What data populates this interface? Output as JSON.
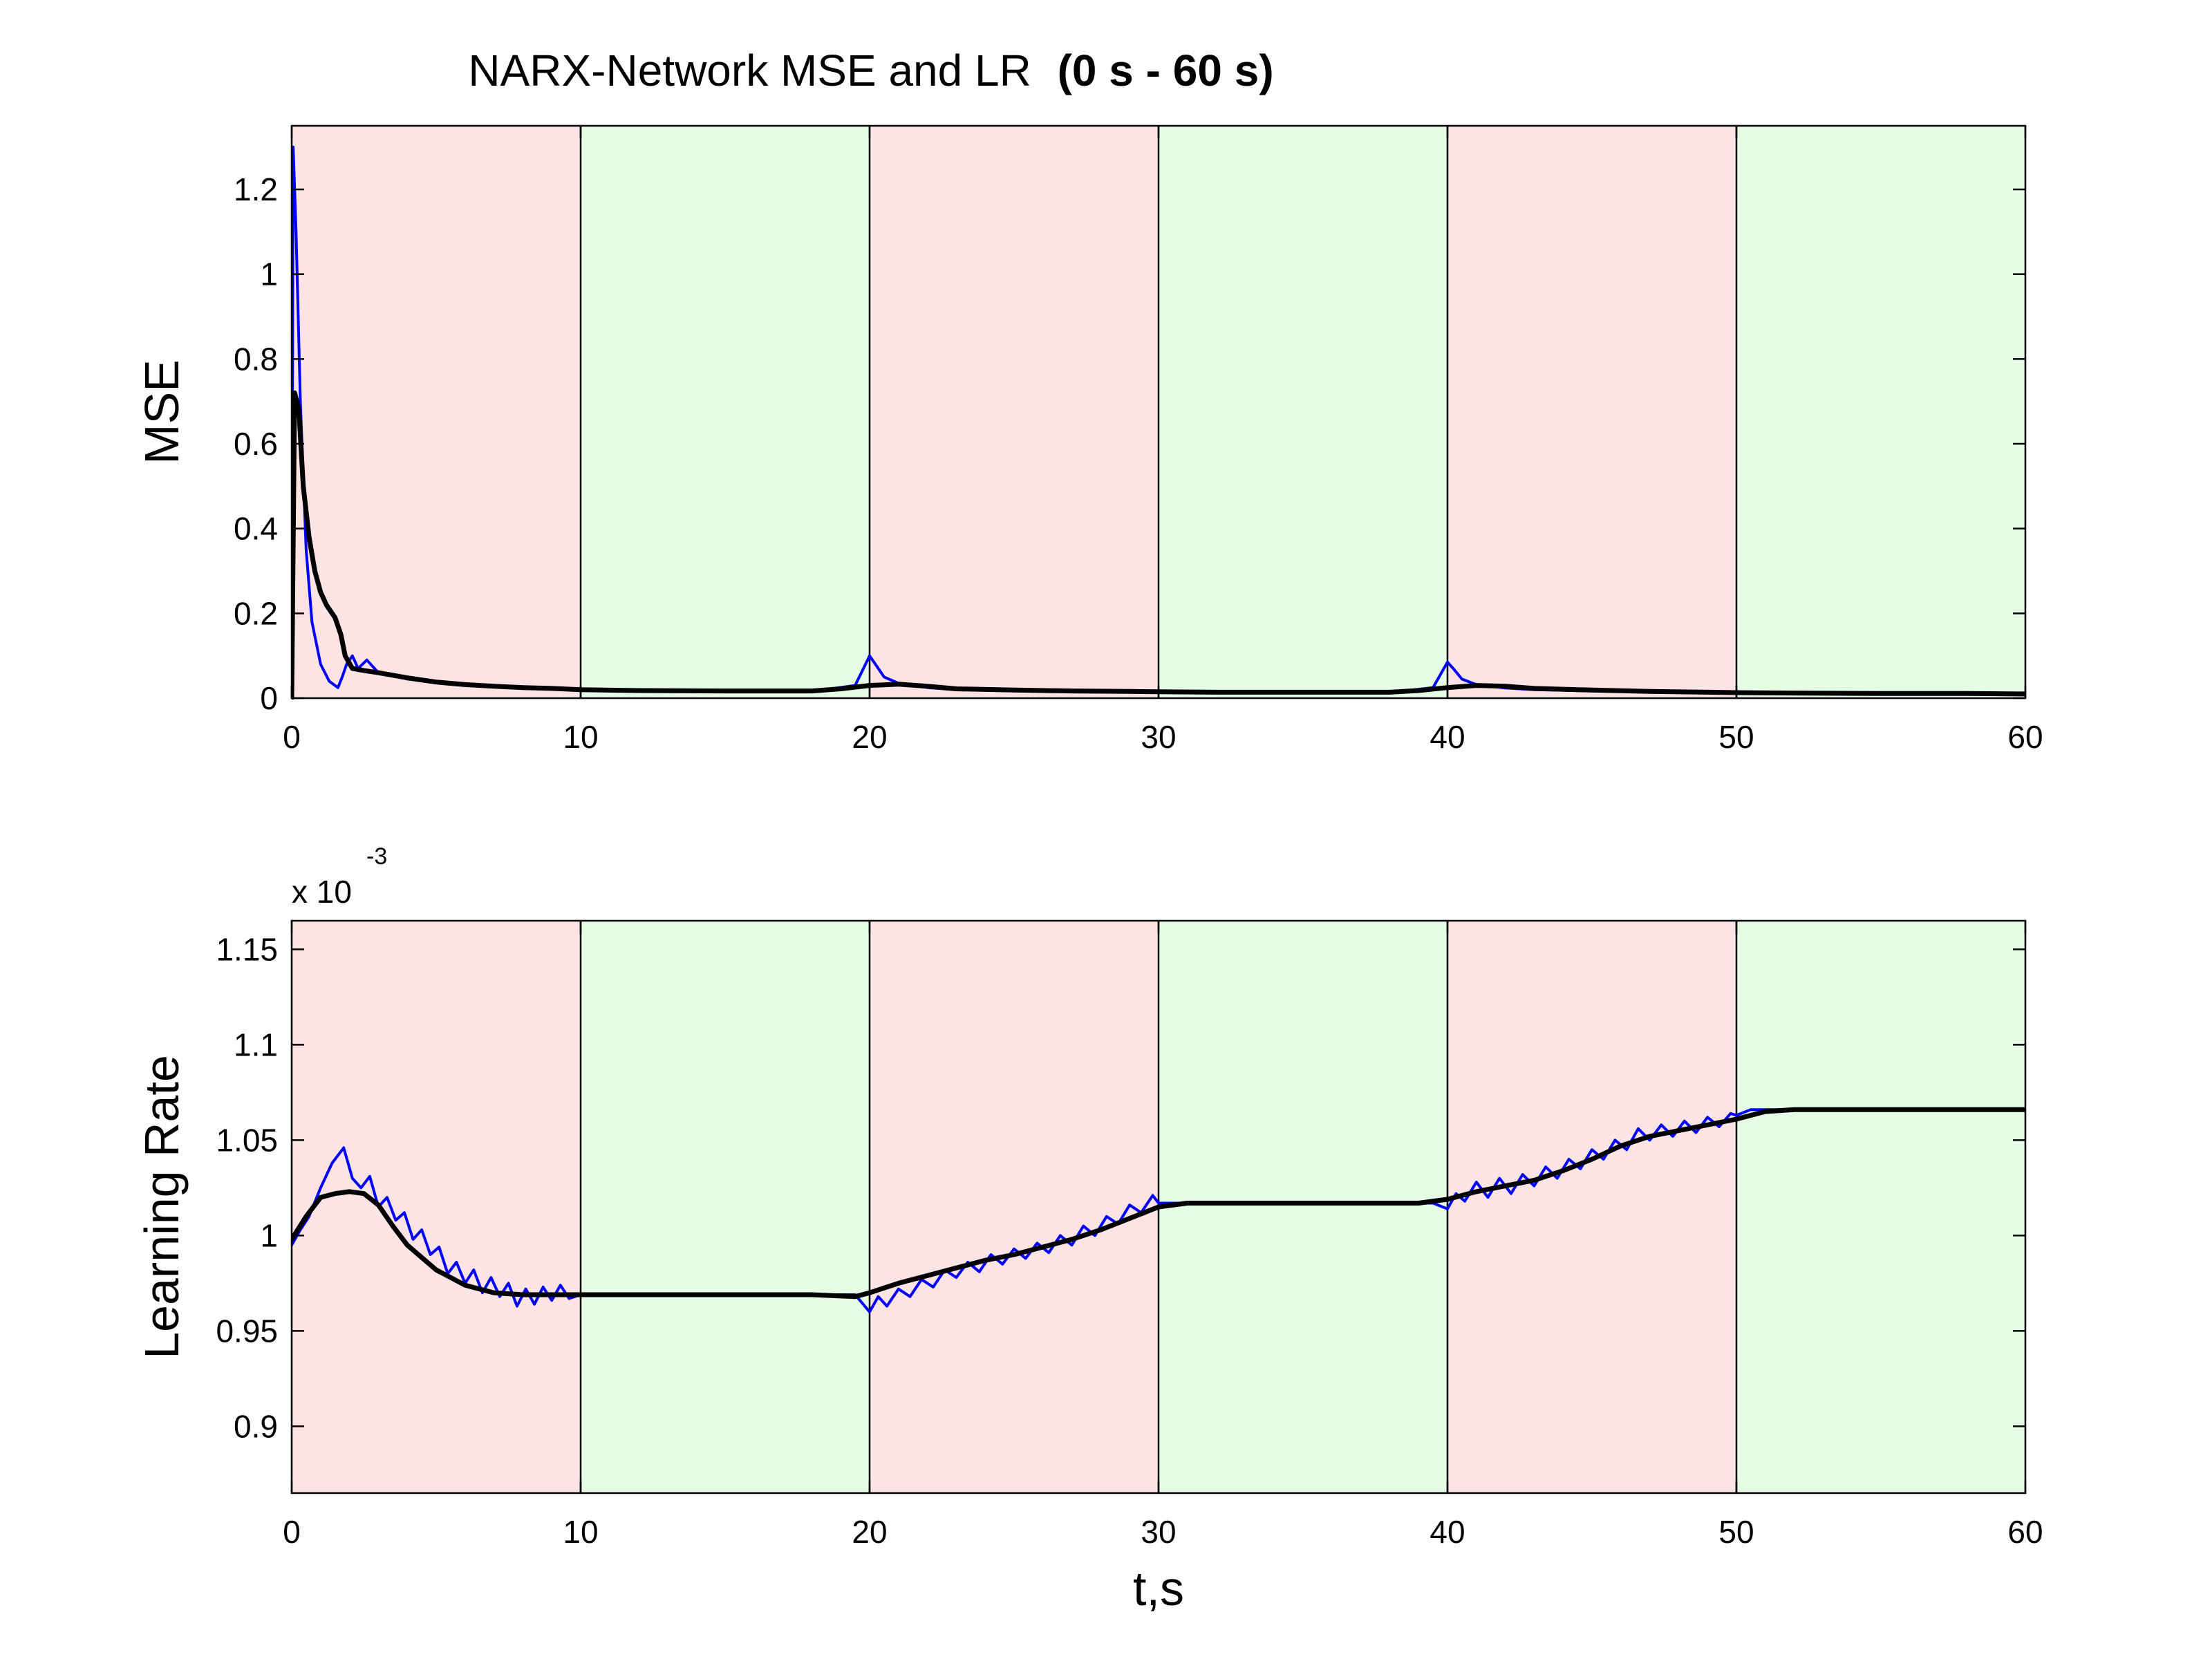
{
  "figure": {
    "title": "NARX-Network MSE and LR",
    "title_bold_suffix": "(0 s - 60 s)"
  },
  "colors": {
    "background": "#ffffff",
    "stop_band": "#fde4e4",
    "run_band": "#e4fde4",
    "raw_series": "#0000ff",
    "smoothed_series": "#000000",
    "axis": "#000000"
  },
  "chart_data": [
    {
      "type": "line",
      "ylabel": "MSE",
      "xlabel": "",
      "xlim": [
        0,
        60
      ],
      "ylim": [
        0,
        1.35
      ],
      "x_ticks": [
        0,
        10,
        20,
        30,
        40,
        50,
        60
      ],
      "y_ticks": [
        0,
        0.2,
        0.4,
        0.6,
        0.8,
        1,
        1.2
      ],
      "y_tick_labels": [
        "0",
        "0.2",
        "0.4",
        "0.6",
        "0.8",
        "1",
        "1.2"
      ],
      "exponent_label": "",
      "bands": [
        {
          "x0": 0,
          "x1": 10,
          "kind": "stop"
        },
        {
          "x0": 10,
          "x1": 20,
          "kind": "run"
        },
        {
          "x0": 20,
          "x1": 30,
          "kind": "stop"
        },
        {
          "x0": 30,
          "x1": 40,
          "kind": "run"
        },
        {
          "x0": 40,
          "x1": 50,
          "kind": "stop"
        },
        {
          "x0": 50,
          "x1": 60,
          "kind": "run"
        }
      ],
      "series": [
        {
          "role": "raw",
          "x": [
            0,
            0.05,
            0.15,
            0.3,
            0.5,
            0.7,
            1.0,
            1.3,
            1.6,
            1.75,
            1.9,
            2.1,
            2.3,
            2.6,
            3.0,
            3.5,
            4,
            5,
            6,
            7,
            8,
            9,
            10,
            12,
            15,
            18,
            19.5,
            20.0,
            20.2,
            20.5,
            21,
            22,
            23,
            25,
            27,
            29,
            30,
            32,
            35,
            38,
            39.5,
            40.0,
            40.2,
            40.5,
            41,
            42,
            43,
            45,
            47,
            49,
            50,
            52,
            55,
            58,
            60
          ],
          "y": [
            0,
            1.3,
            1.1,
            0.7,
            0.35,
            0.18,
            0.08,
            0.04,
            0.025,
            0.05,
            0.08,
            0.1,
            0.07,
            0.09,
            0.06,
            0.055,
            0.045,
            0.04,
            0.032,
            0.028,
            0.025,
            0.023,
            0.02,
            0.018,
            0.017,
            0.016,
            0.03,
            0.1,
            0.08,
            0.05,
            0.035,
            0.025,
            0.02,
            0.018,
            0.016,
            0.015,
            0.014,
            0.013,
            0.013,
            0.013,
            0.025,
            0.085,
            0.07,
            0.045,
            0.032,
            0.024,
            0.02,
            0.017,
            0.015,
            0.013,
            0.012,
            0.011,
            0.011,
            0.01,
            0.01
          ]
        },
        {
          "role": "smoothed",
          "x": [
            0,
            0.1,
            0.25,
            0.4,
            0.6,
            0.8,
            1.0,
            1.2,
            1.5,
            1.7,
            1.85,
            2.1,
            2.5,
            3.0,
            4,
            5,
            6,
            7,
            8,
            9,
            10,
            12,
            15,
            18,
            19,
            20,
            21,
            22,
            23,
            25,
            27,
            29,
            30,
            32,
            35,
            38,
            39,
            40,
            41,
            42,
            43,
            45,
            47,
            49,
            50,
            52,
            55,
            58,
            60
          ],
          "y": [
            0,
            0.72,
            0.68,
            0.5,
            0.38,
            0.3,
            0.25,
            0.22,
            0.19,
            0.15,
            0.1,
            0.07,
            0.065,
            0.06,
            0.048,
            0.038,
            0.032,
            0.028,
            0.025,
            0.023,
            0.02,
            0.018,
            0.017,
            0.017,
            0.022,
            0.03,
            0.033,
            0.028,
            0.022,
            0.019,
            0.017,
            0.016,
            0.015,
            0.014,
            0.014,
            0.014,
            0.018,
            0.025,
            0.03,
            0.028,
            0.023,
            0.019,
            0.016,
            0.014,
            0.013,
            0.012,
            0.011,
            0.011,
            0.01
          ]
        }
      ]
    },
    {
      "type": "line",
      "ylabel": "Learning Rate",
      "xlabel": "t,s",
      "xlim": [
        0,
        60
      ],
      "ylim": [
        0.865,
        1.165
      ],
      "x_ticks": [
        0,
        10,
        20,
        30,
        40,
        50,
        60
      ],
      "y_ticks": [
        0.9,
        0.95,
        1,
        1.05,
        1.1,
        1.15
      ],
      "y_tick_labels": [
        "0.9",
        "0.95",
        "1",
        "1.05",
        "1.1",
        "1.15"
      ],
      "exponent_label": "x 10",
      "exponent_power": "-3",
      "bands": [
        {
          "x0": 0,
          "x1": 10,
          "kind": "stop"
        },
        {
          "x0": 10,
          "x1": 20,
          "kind": "run"
        },
        {
          "x0": 20,
          "x1": 30,
          "kind": "stop"
        },
        {
          "x0": 30,
          "x1": 40,
          "kind": "run"
        },
        {
          "x0": 40,
          "x1": 50,
          "kind": "stop"
        },
        {
          "x0": 50,
          "x1": 60,
          "kind": "run"
        }
      ],
      "series": [
        {
          "role": "raw",
          "x": [
            0,
            0.3,
            0.6,
            1.0,
            1.4,
            1.8,
            2.1,
            2.4,
            2.7,
            3.0,
            3.3,
            3.6,
            3.9,
            4.2,
            4.5,
            4.8,
            5.1,
            5.4,
            5.7,
            6.0,
            6.3,
            6.6,
            6.9,
            7.2,
            7.5,
            7.8,
            8.1,
            8.4,
            8.7,
            9.0,
            9.3,
            9.6,
            10.0,
            12,
            15,
            18,
            19.5,
            20.0,
            20.3,
            20.6,
            21.0,
            21.4,
            21.8,
            22.2,
            22.6,
            23.0,
            23.4,
            23.8,
            24.2,
            24.6,
            25.0,
            25.4,
            25.8,
            26.2,
            26.6,
            27.0,
            27.4,
            27.8,
            28.2,
            28.6,
            29.0,
            29.4,
            29.8,
            30.0,
            32,
            35,
            38,
            39.5,
            40.0,
            40.3,
            40.6,
            41.0,
            41.4,
            41.8,
            42.2,
            42.6,
            43.0,
            43.4,
            43.8,
            44.2,
            44.6,
            45.0,
            45.4,
            45.8,
            46.2,
            46.6,
            47.0,
            47.4,
            47.8,
            48.2,
            48.6,
            49.0,
            49.4,
            49.8,
            50.0,
            50.5,
            51,
            52,
            55,
            58,
            60
          ],
          "y": [
            0.995,
            1.003,
            1.01,
            1.025,
            1.038,
            1.046,
            1.03,
            1.025,
            1.031,
            1.015,
            1.02,
            1.008,
            1.012,
            0.998,
            1.003,
            0.99,
            0.994,
            0.98,
            0.986,
            0.975,
            0.982,
            0.97,
            0.978,
            0.968,
            0.975,
            0.963,
            0.972,
            0.964,
            0.973,
            0.966,
            0.974,
            0.967,
            0.969,
            0.969,
            0.969,
            0.969,
            0.969,
            0.96,
            0.968,
            0.963,
            0.972,
            0.968,
            0.977,
            0.973,
            0.982,
            0.978,
            0.986,
            0.981,
            0.99,
            0.985,
            0.993,
            0.988,
            0.996,
            0.991,
            1.0,
            0.995,
            1.005,
            1.0,
            1.01,
            1.006,
            1.016,
            1.012,
            1.021,
            1.017,
            1.017,
            1.017,
            1.017,
            1.017,
            1.014,
            1.022,
            1.018,
            1.028,
            1.02,
            1.03,
            1.022,
            1.032,
            1.026,
            1.036,
            1.03,
            1.04,
            1.035,
            1.045,
            1.04,
            1.05,
            1.045,
            1.056,
            1.05,
            1.058,
            1.052,
            1.06,
            1.054,
            1.062,
            1.057,
            1.064,
            1.063,
            1.066,
            1.066,
            1.066,
            1.066,
            1.066,
            1.066
          ]
        },
        {
          "role": "smoothed",
          "x": [
            0,
            0.5,
            1.0,
            1.5,
            2.0,
            2.5,
            3.0,
            3.5,
            4,
            5,
            6,
            7,
            8,
            9,
            10,
            12,
            15,
            18,
            19.5,
            20,
            21,
            22,
            23,
            24,
            25,
            26,
            27,
            28,
            29,
            30,
            31,
            32,
            35,
            38,
            39,
            40,
            41,
            42,
            43,
            44,
            45,
            46,
            47,
            48,
            49,
            50,
            51,
            52,
            55,
            58,
            60
          ],
          "y": [
            0.998,
            1.01,
            1.02,
            1.022,
            1.023,
            1.022,
            1.016,
            1.005,
            0.995,
            0.982,
            0.974,
            0.97,
            0.969,
            0.969,
            0.969,
            0.969,
            0.969,
            0.969,
            0.968,
            0.97,
            0.975,
            0.979,
            0.983,
            0.987,
            0.99,
            0.994,
            0.998,
            1.003,
            1.009,
            1.015,
            1.017,
            1.017,
            1.017,
            1.017,
            1.017,
            1.019,
            1.023,
            1.026,
            1.029,
            1.034,
            1.04,
            1.047,
            1.052,
            1.055,
            1.058,
            1.061,
            1.065,
            1.066,
            1.066,
            1.066,
            1.066
          ]
        }
      ]
    }
  ]
}
